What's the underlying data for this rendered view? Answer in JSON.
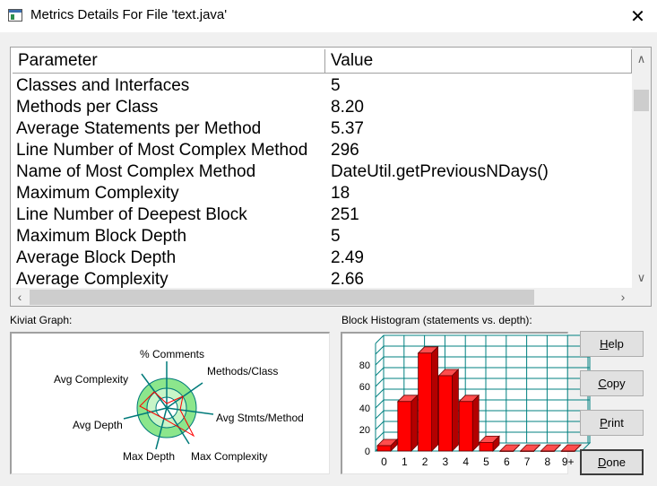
{
  "window": {
    "title": "Metrics Details For File 'text.java'",
    "close_glyph": "✕"
  },
  "table": {
    "headers": [
      "Parameter",
      "Value"
    ],
    "rows": [
      [
        "Classes and Interfaces",
        "5"
      ],
      [
        "Methods per Class",
        "8.20"
      ],
      [
        "Average Statements per Method",
        "5.37"
      ],
      [
        "Line Number of Most Complex Method",
        "296"
      ],
      [
        "Name of Most Complex Method",
        "DateUtil.getPreviousNDays()"
      ],
      [
        "Maximum Complexity",
        "18"
      ],
      [
        "Line Number of Deepest Block",
        "251"
      ],
      [
        "Maximum Block Depth",
        "5"
      ],
      [
        "Average Block Depth",
        "2.49"
      ],
      [
        "Average Complexity",
        "2.66"
      ]
    ]
  },
  "kiviat": {
    "label": "Kiviat Graph:",
    "axes": [
      "% Comments",
      "Methods/Class",
      "Avg Stmts/Method",
      "Max Complexity",
      "Max Depth",
      "Avg Depth",
      "Avg Complexity"
    ],
    "colors": {
      "ring": "#8ce68c",
      "ring_inner": "#c8f5c8",
      "axis": "#007a7a",
      "plot": "#ff0000"
    }
  },
  "histogram": {
    "label": "Block Histogram (statements vs. depth):",
    "color": "#ff0000",
    "grid_color": "#008080"
  },
  "chart_data": {
    "type": "bar",
    "title": "Block Histogram (statements vs. depth):",
    "categories": [
      "0",
      "1",
      "2",
      "3",
      "4",
      "5",
      "6",
      "7",
      "8",
      "9+"
    ],
    "values": [
      5,
      46,
      91,
      70,
      46,
      8,
      0,
      0,
      0,
      0
    ],
    "yticks": [
      "0",
      "20",
      "40",
      "60",
      "80"
    ],
    "ylim": [
      0,
      100
    ],
    "grid": true
  },
  "buttons": {
    "help": {
      "label": "Help",
      "mnemonic": "H",
      "rest": "elp"
    },
    "copy": {
      "label": "Copy",
      "mnemonic": "C",
      "rest": "opy"
    },
    "print": {
      "label": "Print",
      "mnemonic": "P",
      "rest": "rint"
    },
    "done": {
      "label": "Done",
      "mnemonic": "D",
      "rest": "one"
    }
  }
}
